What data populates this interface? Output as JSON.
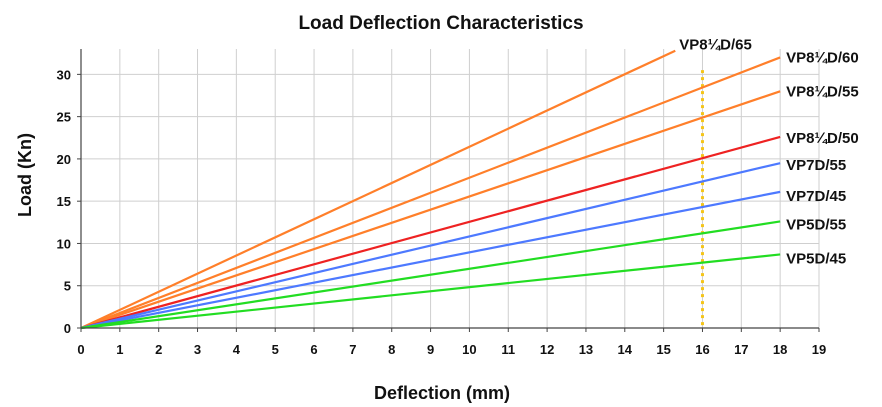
{
  "chart_data": {
    "type": "line",
    "title": "Load Deflection Characteristics",
    "xlabel": "Deflection (mm)",
    "ylabel": "Load (Kn)",
    "xlim": [
      0,
      19
    ],
    "ylim": [
      0,
      33
    ],
    "xticks": [
      "0",
      "1",
      "2",
      "3",
      "4",
      "5",
      "6",
      "7",
      "8",
      "9",
      "10",
      "11",
      "12",
      "13",
      "14",
      "15",
      "16",
      "17",
      "18",
      "19"
    ],
    "yticks": [
      "0",
      "5",
      "10",
      "15",
      "20",
      "25",
      "30"
    ],
    "grid": true,
    "legend": "labels at line ends",
    "reference_line": {
      "x": 16,
      "color": "#f5c518",
      "style": "dotted"
    },
    "series": [
      {
        "name": "VP8¼D/65",
        "color": "#ff7f2a",
        "points": [
          [
            0,
            0
          ],
          [
            15.3,
            32.8
          ]
        ]
      },
      {
        "name": "VP8¼D/60",
        "color": "#ff7f2a",
        "points": [
          [
            0,
            0
          ],
          [
            18,
            32
          ]
        ]
      },
      {
        "name": "VP8¼D/55",
        "color": "#ff7f2a",
        "points": [
          [
            0,
            0
          ],
          [
            18,
            28
          ]
        ]
      },
      {
        "name": "VP8¼D/50",
        "color": "#ee2222",
        "points": [
          [
            0,
            0
          ],
          [
            18,
            22.6
          ]
        ]
      },
      {
        "name": "VP7D/55",
        "color": "#4d79ff",
        "points": [
          [
            0,
            0
          ],
          [
            18,
            19.5
          ]
        ]
      },
      {
        "name": "VP7D/45",
        "color": "#4d79ff",
        "points": [
          [
            0,
            0
          ],
          [
            18,
            16.1
          ]
        ]
      },
      {
        "name": "VP5D/55",
        "color": "#22dd22",
        "points": [
          [
            0,
            0
          ],
          [
            18,
            12.6
          ]
        ]
      },
      {
        "name": "VP5D/45",
        "color": "#22dd22",
        "points": [
          [
            0,
            0
          ],
          [
            18,
            8.7
          ]
        ]
      }
    ]
  }
}
